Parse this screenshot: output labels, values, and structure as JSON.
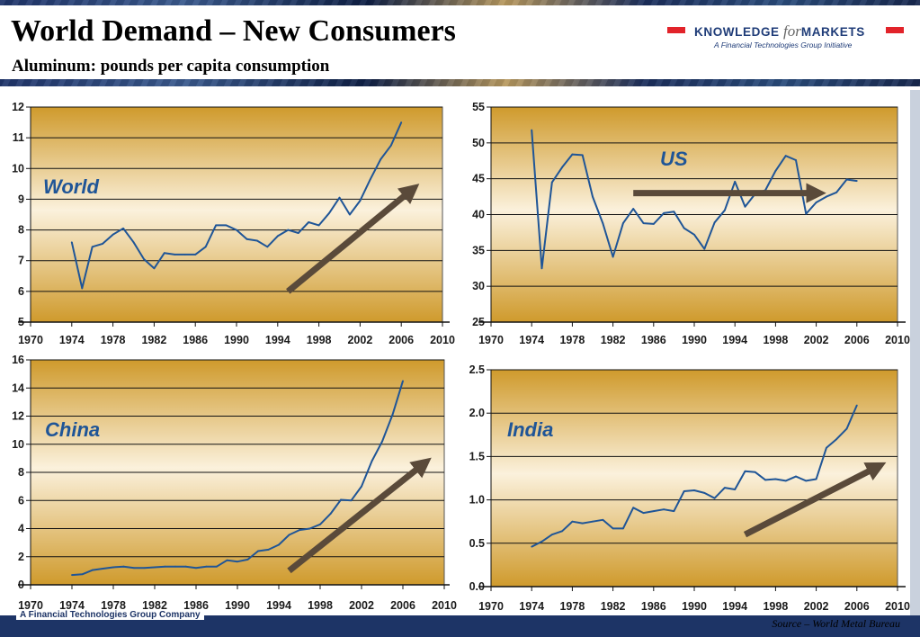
{
  "header": {
    "title": "World Demand – New Consumers",
    "subtitle": "Aluminum: pounds per capita consumption"
  },
  "logo": {
    "text_knowledge": "KNOWLEDGE",
    "text_for": "for",
    "text_markets": "MARKETS",
    "tagline": "A Financial Technologies Group Initiative"
  },
  "footer": {
    "company": "A Financial Technologies Group Company",
    "source": "Source – World Metal Bureau"
  },
  "colors": {
    "line": "#1f5597",
    "arrow": "#5a4a3a",
    "panel_top": "#cf9a2c",
    "panel_mid": "#fbf1dc",
    "accent_red": "#e2232a"
  },
  "chart_data": [
    {
      "type": "line",
      "label": "World",
      "x": [
        1974,
        1975,
        1976,
        1977,
        1978,
        1979,
        1980,
        1981,
        1982,
        1983,
        1984,
        1985,
        1986,
        1987,
        1988,
        1989,
        1990,
        1991,
        1992,
        1993,
        1994,
        1995,
        1996,
        1997,
        1998,
        1999,
        2000,
        2001,
        2002,
        2003,
        2004,
        2005,
        2006
      ],
      "y": [
        7.6,
        6.1,
        7.45,
        7.55,
        7.85,
        8.05,
        7.6,
        7.05,
        6.75,
        7.25,
        7.2,
        7.2,
        7.2,
        7.45,
        8.15,
        8.15,
        8.0,
        7.7,
        7.65,
        7.45,
        7.8,
        8.0,
        7.9,
        8.25,
        8.15,
        8.55,
        9.05,
        8.5,
        8.95,
        9.65,
        10.3,
        10.75,
        11.5
      ],
      "xlim": [
        1970,
        2010
      ],
      "ylim": [
        5,
        12
      ],
      "yticks": [
        "5",
        "6",
        "7",
        "8",
        "9",
        "10",
        "11",
        "12"
      ],
      "xticks": [
        "1970",
        "1974",
        "1978",
        "1982",
        "1986",
        "1990",
        "1994",
        "1998",
        "2002",
        "2006",
        "2010"
      ],
      "grid": true,
      "trend_arrow": {
        "from": [
          1995,
          6.0
        ],
        "to": [
          2007,
          9.3
        ]
      }
    },
    {
      "type": "line",
      "label": "US",
      "x": [
        1974,
        1975,
        1976,
        1977,
        1978,
        1979,
        1980,
        1981,
        1982,
        1983,
        1984,
        1985,
        1986,
        1987,
        1988,
        1989,
        1990,
        1991,
        1992,
        1993,
        1994,
        1995,
        1996,
        1997,
        1998,
        1999,
        2000,
        2001,
        2002,
        2003,
        2004,
        2005,
        2006
      ],
      "y": [
        51.8,
        32.5,
        44.5,
        46.6,
        48.4,
        48.3,
        42.5,
        38.8,
        34.1,
        38.8,
        40.8,
        38.8,
        38.7,
        40.2,
        40.4,
        38.1,
        37.2,
        35.2,
        38.9,
        40.6,
        44.6,
        41.1,
        42.9,
        43.4,
        46.1,
        48.2,
        47.6,
        40.1,
        41.7,
        42.5,
        43.1,
        44.9,
        44.7
      ],
      "xlim": [
        1970,
        2010
      ],
      "ylim": [
        25,
        55
      ],
      "yticks": [
        "25",
        "30",
        "35",
        "40",
        "45",
        "50",
        "55"
      ],
      "xticks": [
        "1970",
        "1974",
        "1978",
        "1982",
        "1986",
        "1990",
        "1994",
        "1998",
        "2002",
        "2006",
        "2010"
      ],
      "grid": true,
      "trend_arrow": {
        "from": [
          1984,
          43.0
        ],
        "to": [
          2002,
          43.0
        ]
      }
    },
    {
      "type": "line",
      "label": "China",
      "x": [
        1974,
        1975,
        1976,
        1977,
        1978,
        1979,
        1980,
        1981,
        1982,
        1983,
        1984,
        1985,
        1986,
        1987,
        1988,
        1989,
        1990,
        1991,
        1992,
        1993,
        1994,
        1995,
        1996,
        1997,
        1998,
        1999,
        2000,
        2001,
        2002,
        2003,
        2004,
        2005,
        2006
      ],
      "y": [
        0.7,
        0.75,
        1.05,
        1.15,
        1.25,
        1.3,
        1.2,
        1.2,
        1.25,
        1.3,
        1.3,
        1.3,
        1.2,
        1.3,
        1.3,
        1.75,
        1.65,
        1.8,
        2.4,
        2.5,
        2.85,
        3.55,
        3.9,
        4.0,
        4.3,
        5.05,
        6.05,
        6.0,
        7.0,
        8.8,
        10.2,
        12.1,
        14.5
      ],
      "xlim": [
        1970,
        2010
      ],
      "ylim": [
        0,
        16
      ],
      "yticks": [
        "0",
        "2",
        "4",
        "6",
        "8",
        "10",
        "12",
        "14",
        "16"
      ],
      "xticks": [
        "1970",
        "1974",
        "1978",
        "1982",
        "1986",
        "1990",
        "1994",
        "1998",
        "2002",
        "2006",
        "2010"
      ],
      "grid": true,
      "trend_arrow": {
        "from": [
          1995,
          1.0
        ],
        "to": [
          2008,
          8.6
        ]
      }
    },
    {
      "type": "line",
      "label": "India",
      "x": [
        1974,
        1975,
        1976,
        1977,
        1978,
        1979,
        1980,
        1981,
        1982,
        1983,
        1984,
        1985,
        1986,
        1987,
        1988,
        1989,
        1990,
        1991,
        1992,
        1993,
        1994,
        1995,
        1996,
        1997,
        1998,
        1999,
        2000,
        2001,
        2002,
        2003,
        2004,
        2005,
        2006
      ],
      "y": [
        0.46,
        0.52,
        0.6,
        0.64,
        0.75,
        0.73,
        0.75,
        0.77,
        0.67,
        0.67,
        0.91,
        0.85,
        0.87,
        0.89,
        0.87,
        1.1,
        1.11,
        1.08,
        1.02,
        1.14,
        1.12,
        1.33,
        1.32,
        1.23,
        1.24,
        1.22,
        1.27,
        1.22,
        1.24,
        1.6,
        1.7,
        1.82,
        2.09
      ],
      "xlim": [
        1970,
        2010
      ],
      "ylim": [
        0,
        2.5
      ],
      "yticks": [
        "0.0",
        "0.5",
        "1.0",
        "1.5",
        "2.0",
        "2.5"
      ],
      "xticks": [
        "1970",
        "1974",
        "1978",
        "1982",
        "1986",
        "1990",
        "1994",
        "1998",
        "2002",
        "2006",
        "2010"
      ],
      "grid": true,
      "trend_arrow": {
        "from": [
          1995,
          0.6
        ],
        "to": [
          2008,
          1.38
        ]
      }
    }
  ]
}
